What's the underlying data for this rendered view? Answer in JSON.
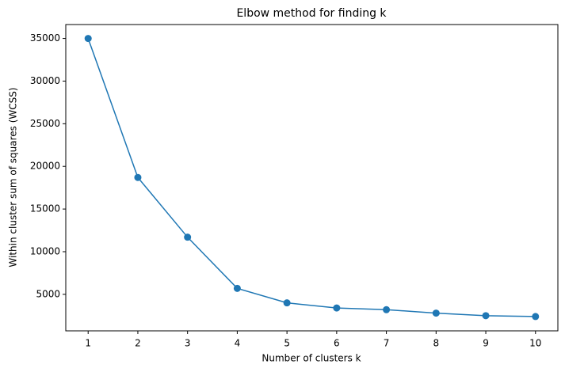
{
  "chart_data": {
    "type": "line",
    "title": "Elbow method for finding k",
    "x_label": "Number of clusters k",
    "y_label": "Within cluster sum of squares (WCSS)",
    "x": [
      1,
      2,
      3,
      4,
      5,
      6,
      7,
      8,
      9,
      10
    ],
    "series": [
      {
        "name": "WCSS",
        "color": "#1f77b4",
        "values": [
          35000,
          18700,
          11700,
          5700,
          4000,
          3400,
          3200,
          2800,
          2500,
          2400
        ]
      }
    ],
    "xlim": [
      0.55,
      10.45
    ],
    "xticks": [
      1,
      2,
      3,
      4,
      5,
      6,
      7,
      8,
      9,
      10
    ],
    "ylim": [
      720,
      36630
    ],
    "yticks": [
      5000,
      10000,
      15000,
      20000,
      25000,
      30000,
      35000
    ],
    "grid": false,
    "markers": true
  }
}
